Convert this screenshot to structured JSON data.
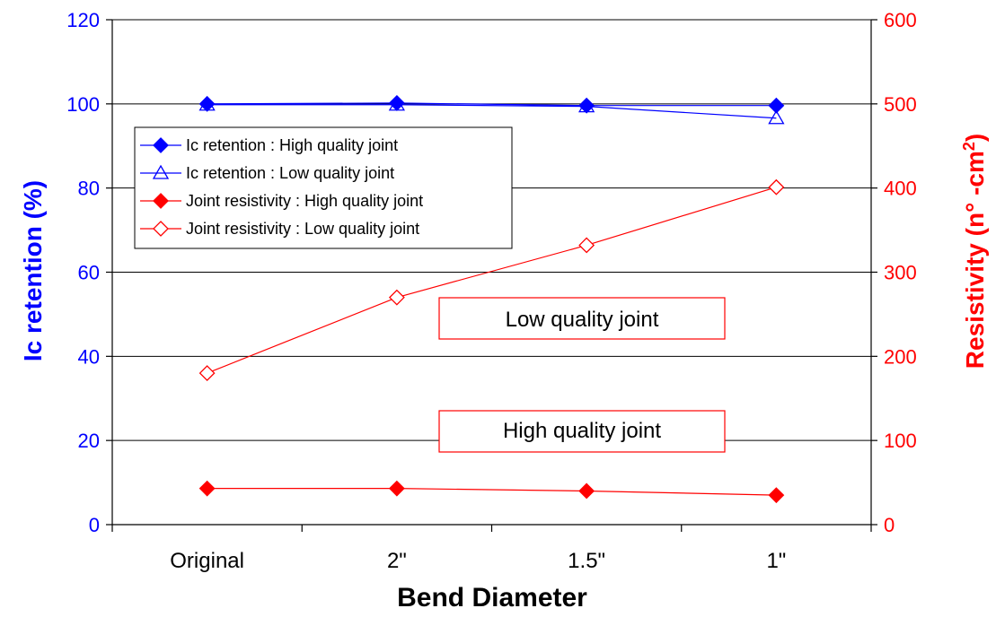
{
  "chart_data": {
    "type": "line",
    "xlabel": "Bend Diameter",
    "categories": [
      "Original",
      "2\"",
      "1.5\"",
      "1\""
    ],
    "y_left": {
      "label": "Ic retention (%)",
      "range": [
        0,
        120
      ],
      "ticks": [
        0,
        20,
        40,
        60,
        80,
        100,
        120
      ],
      "color": "#0000ff"
    },
    "y_right": {
      "label": "Resistivity (n° -cm",
      "label_sup": "2",
      "label_end": ")",
      "range": [
        0,
        600
      ],
      "ticks": [
        0,
        100,
        200,
        300,
        400,
        500,
        600
      ],
      "color": "#ff0000"
    },
    "grid": "horizontal",
    "legend_position": "upper-left",
    "series": [
      {
        "name": "Ic retention : High quality joint",
        "axis": "left",
        "color": "#0000ff",
        "marker": "diamond-filled",
        "values": [
          100,
          100.2,
          99.6,
          99.6
        ]
      },
      {
        "name": "Ic retention : Low quality joint",
        "axis": "left",
        "color": "#0000ff",
        "marker": "triangle-open",
        "values": [
          99.8,
          99.8,
          99.4,
          96.6
        ]
      },
      {
        "name": "Joint resistivity : High quality joint",
        "axis": "right",
        "color": "#ff0000",
        "marker": "diamond-filled",
        "values": [
          43,
          43,
          40,
          35
        ]
      },
      {
        "name": "Joint resistivity : Low quality joint",
        "axis": "right",
        "color": "#ff0000",
        "marker": "diamond-open",
        "values": [
          180,
          270,
          332,
          401
        ]
      }
    ],
    "annotations": [
      {
        "text": "Low quality joint"
      },
      {
        "text": "High quality joint"
      }
    ]
  }
}
